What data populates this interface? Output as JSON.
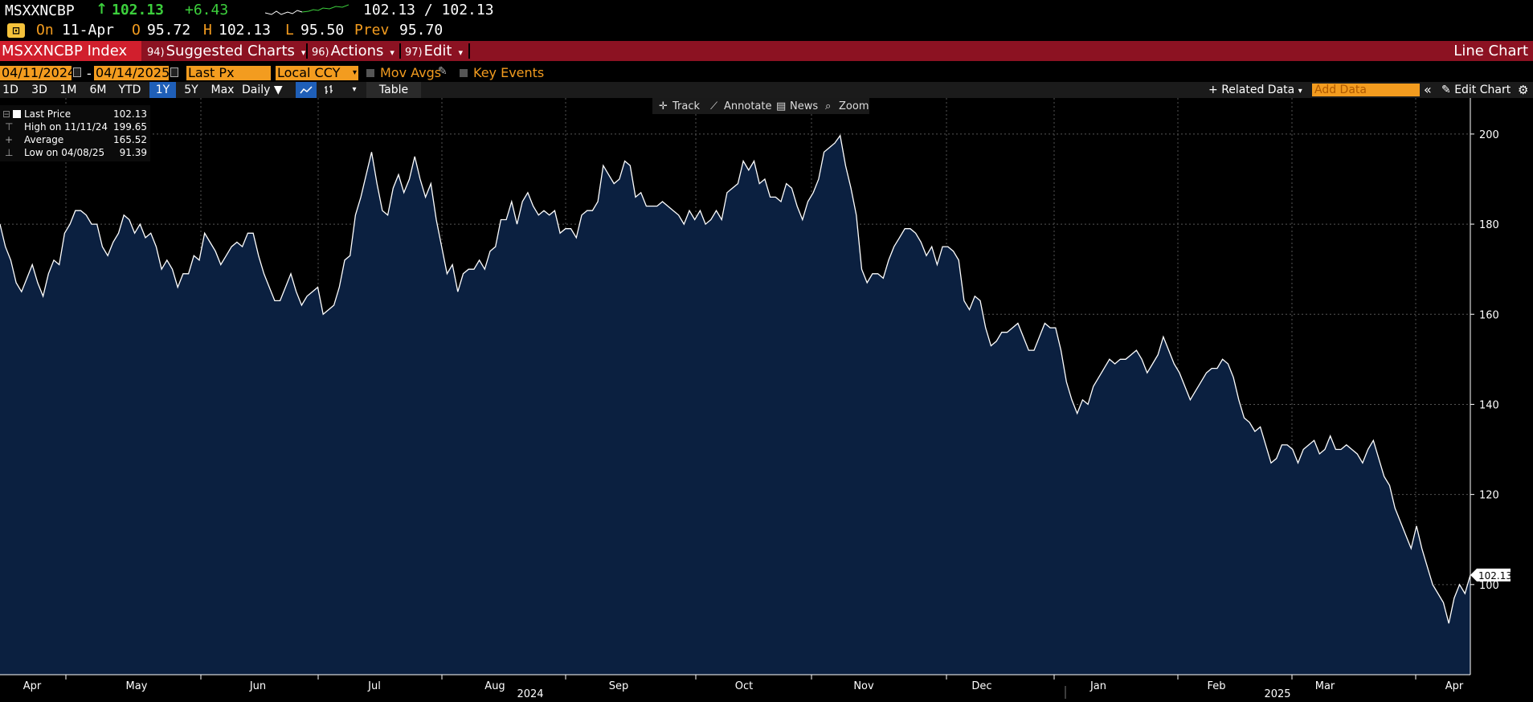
{
  "ticker": {
    "symbol": "MSXXNCBP",
    "arrow": "↑",
    "last": "102.13",
    "change": "+6.43",
    "bid_ask": "102.13 / 102.13"
  },
  "quote": {
    "on_label": "On",
    "date": "11-Apr",
    "open_label": "O",
    "open": "95.72",
    "high_label": "H",
    "high": "102.13",
    "low_label": "L",
    "low": "95.50",
    "prev_label": "Prev",
    "prev": "95.70"
  },
  "toolbar": {
    "index_label": "MSXXNCBP Index",
    "suggested_num": "94)",
    "suggested_label": "Suggested Charts",
    "actions_num": "96)",
    "actions_label": "Actions",
    "edit_num": "97)",
    "edit_label": "Edit",
    "chart_title": "Line Chart"
  },
  "controls": {
    "start_date": "04/11/2024",
    "date_sep": "-",
    "end_date": "04/14/2025",
    "field": "Last Px",
    "currency": "Local CCY",
    "mov_avgs": "Mov Avgs",
    "key_events": "Key Events"
  },
  "periods": [
    "1D",
    "3D",
    "1M",
    "6M",
    "YTD",
    "1Y",
    "5Y",
    "Max"
  ],
  "selected_period": "1Y",
  "frequency": "Daily",
  "table_label": "Table",
  "related_data": "Related Data",
  "add_data_placeholder": "Add Data",
  "edit_chart": "Edit Chart",
  "chart_tools": [
    "Track",
    "Annotate",
    "News",
    "Zoom"
  ],
  "legend": {
    "last_label": "Last Price",
    "last_value": "102.13",
    "high_label": "High on 11/11/24",
    "high_value": "199.65",
    "avg_label": "Average",
    "avg_value": "165.52",
    "low_label": "Low on 04/08/25",
    "low_value": "91.39"
  },
  "colors": {
    "line": "#ffffff",
    "area": "#0b2040",
    "accent_orange": "#f39c1f",
    "toolbar_red": "#8c1222",
    "up_green": "#3ccf3c"
  },
  "chart_data": {
    "type": "area",
    "x_start": "2024-04-11",
    "x_end": "2025-04-11",
    "ylim": [
      80,
      208
    ],
    "y_ticks": [
      100,
      120,
      140,
      160,
      180,
      200
    ],
    "x_tick_labels": [
      "Apr",
      "May",
      "Jun",
      "Jul",
      "Aug",
      "Sep",
      "Oct",
      "Nov",
      "Dec",
      "Jan",
      "Feb",
      "Mar",
      "Apr"
    ],
    "year_labels": [
      "2024",
      "2025"
    ],
    "grid": true,
    "last_value_tag": "102.13",
    "values": [
      180,
      175,
      172,
      167,
      165,
      168,
      171,
      167,
      164,
      169,
      172,
      171,
      178,
      180,
      183,
      183,
      182,
      180,
      180,
      175,
      173,
      176,
      178,
      182,
      181,
      178,
      180,
      177,
      178,
      175,
      170,
      172,
      170,
      166,
      169,
      169,
      173,
      172,
      178,
      176,
      174,
      171,
      173,
      175,
      176,
      175,
      178,
      178,
      173,
      169,
      166,
      163,
      163,
      166,
      169,
      165,
      162,
      164,
      165,
      166,
      160,
      161,
      162,
      166,
      172,
      173,
      182,
      186,
      191,
      196,
      189,
      183,
      182,
      188,
      191,
      187,
      190,
      195,
      190,
      186,
      189,
      181,
      175,
      169,
      171,
      165,
      169,
      170,
      170,
      172,
      170,
      174,
      175,
      181,
      181,
      185,
      180,
      185,
      187,
      184,
      182,
      183,
      182,
      183,
      178,
      179,
      179,
      177,
      182,
      183,
      183,
      185,
      193,
      191,
      189,
      190,
      194,
      193,
      186,
      187,
      184,
      184,
      184,
      185,
      184,
      183,
      182,
      180,
      183,
      181,
      183,
      180,
      181,
      183,
      181,
      187,
      188,
      189,
      194,
      192,
      194,
      189,
      190,
      186,
      186,
      185,
      189,
      188,
      184,
      181,
      185,
      187,
      190,
      196,
      197,
      198,
      199.65,
      193,
      188,
      182,
      170,
      167,
      169,
      169,
      168,
      172,
      175,
      177,
      179,
      179,
      178,
      176,
      173,
      175,
      171,
      175,
      175,
      174,
      172,
      163,
      161,
      164,
      163,
      157,
      153,
      154,
      156,
      156,
      157,
      158,
      155,
      152,
      152,
      155,
      158,
      157,
      157,
      152,
      145,
      141,
      138,
      141,
      140,
      144,
      146,
      148,
      150,
      149,
      150,
      150,
      151,
      152,
      150,
      147,
      149,
      151,
      155,
      152,
      149,
      147,
      144,
      141,
      143,
      145,
      147,
      148,
      148,
      150,
      149,
      146,
      141,
      137,
      136,
      134,
      135,
      131,
      127,
      128,
      131,
      131,
      130,
      127,
      130,
      131,
      132,
      129,
      130,
      133,
      130,
      130,
      131,
      130,
      129,
      127,
      130,
      132,
      128,
      124,
      122,
      117,
      114,
      111,
      108,
      113,
      108,
      104,
      100,
      98,
      96,
      91.39,
      97,
      100,
      98,
      102.13
    ]
  }
}
